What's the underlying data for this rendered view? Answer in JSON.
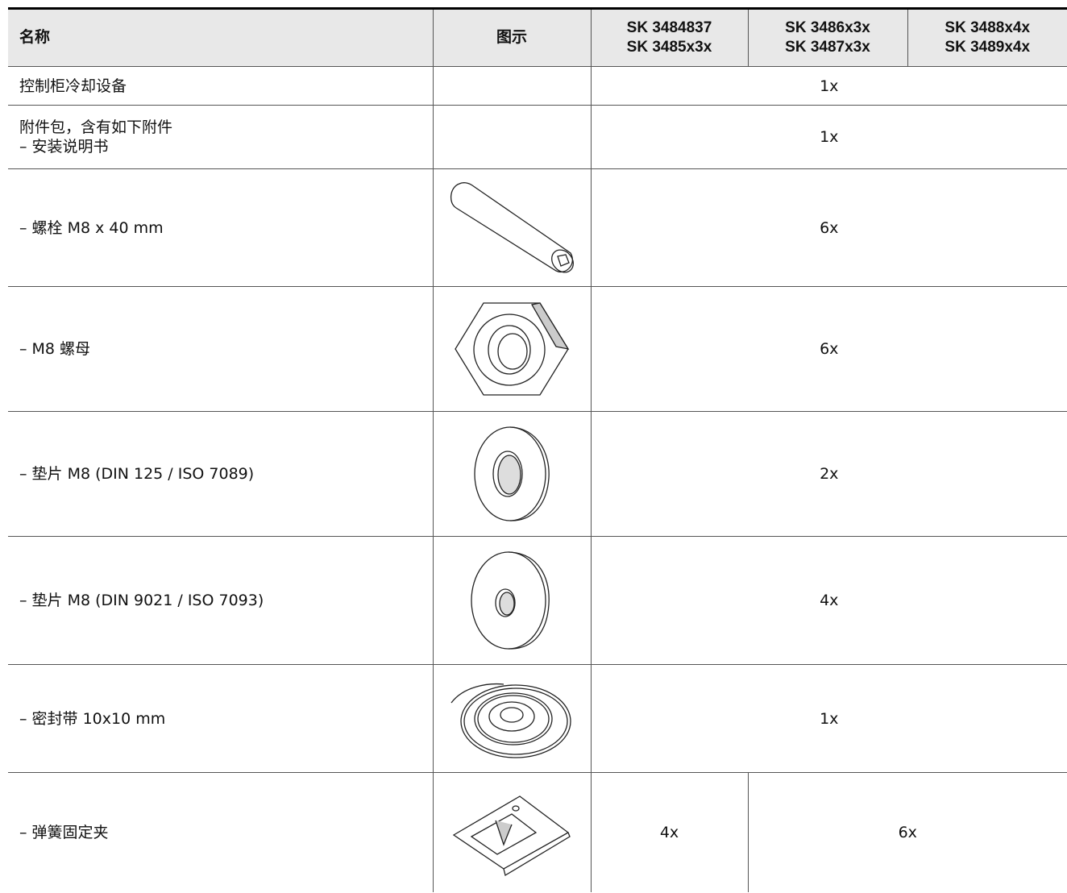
{
  "table": {
    "header": [
      "名称",
      "图示",
      [
        "SK 3484837",
        "SK 3485x3x"
      ],
      [
        "SK 3486x3x",
        "SK 3487x3x"
      ],
      [
        "SK 3488x4x",
        "SK 3489x4x"
      ]
    ],
    "rows": [
      {
        "name": [
          "控制柜冷却设备"
        ],
        "qty": [
          "1x"
        ]
      },
      {
        "name": [
          "附件包，含有如下附件",
          "– 安装说明书"
        ],
        "qty": [
          "1x"
        ]
      },
      {
        "name": [
          "– 螺栓 M8 x 40 mm"
        ],
        "qty": [
          "6x"
        ]
      },
      {
        "name": [
          "– M8 螺母"
        ],
        "qty": [
          "6x"
        ]
      },
      {
        "name": [
          "– 垫片 M8 (DIN 125 / ISO 7089)"
        ],
        "qty": [
          "2x"
        ]
      },
      {
        "name": [
          "– 垫片 M8 (DIN 9021 / ISO 7093)"
        ],
        "qty": [
          "4x"
        ]
      },
      {
        "name": [
          "– 密封带 10x10 mm"
        ],
        "qty": [
          "1x"
        ]
      },
      {
        "name": [
          "– 弹簧固定夹"
        ],
        "qty": [
          "4x",
          "6x"
        ]
      }
    ]
  }
}
